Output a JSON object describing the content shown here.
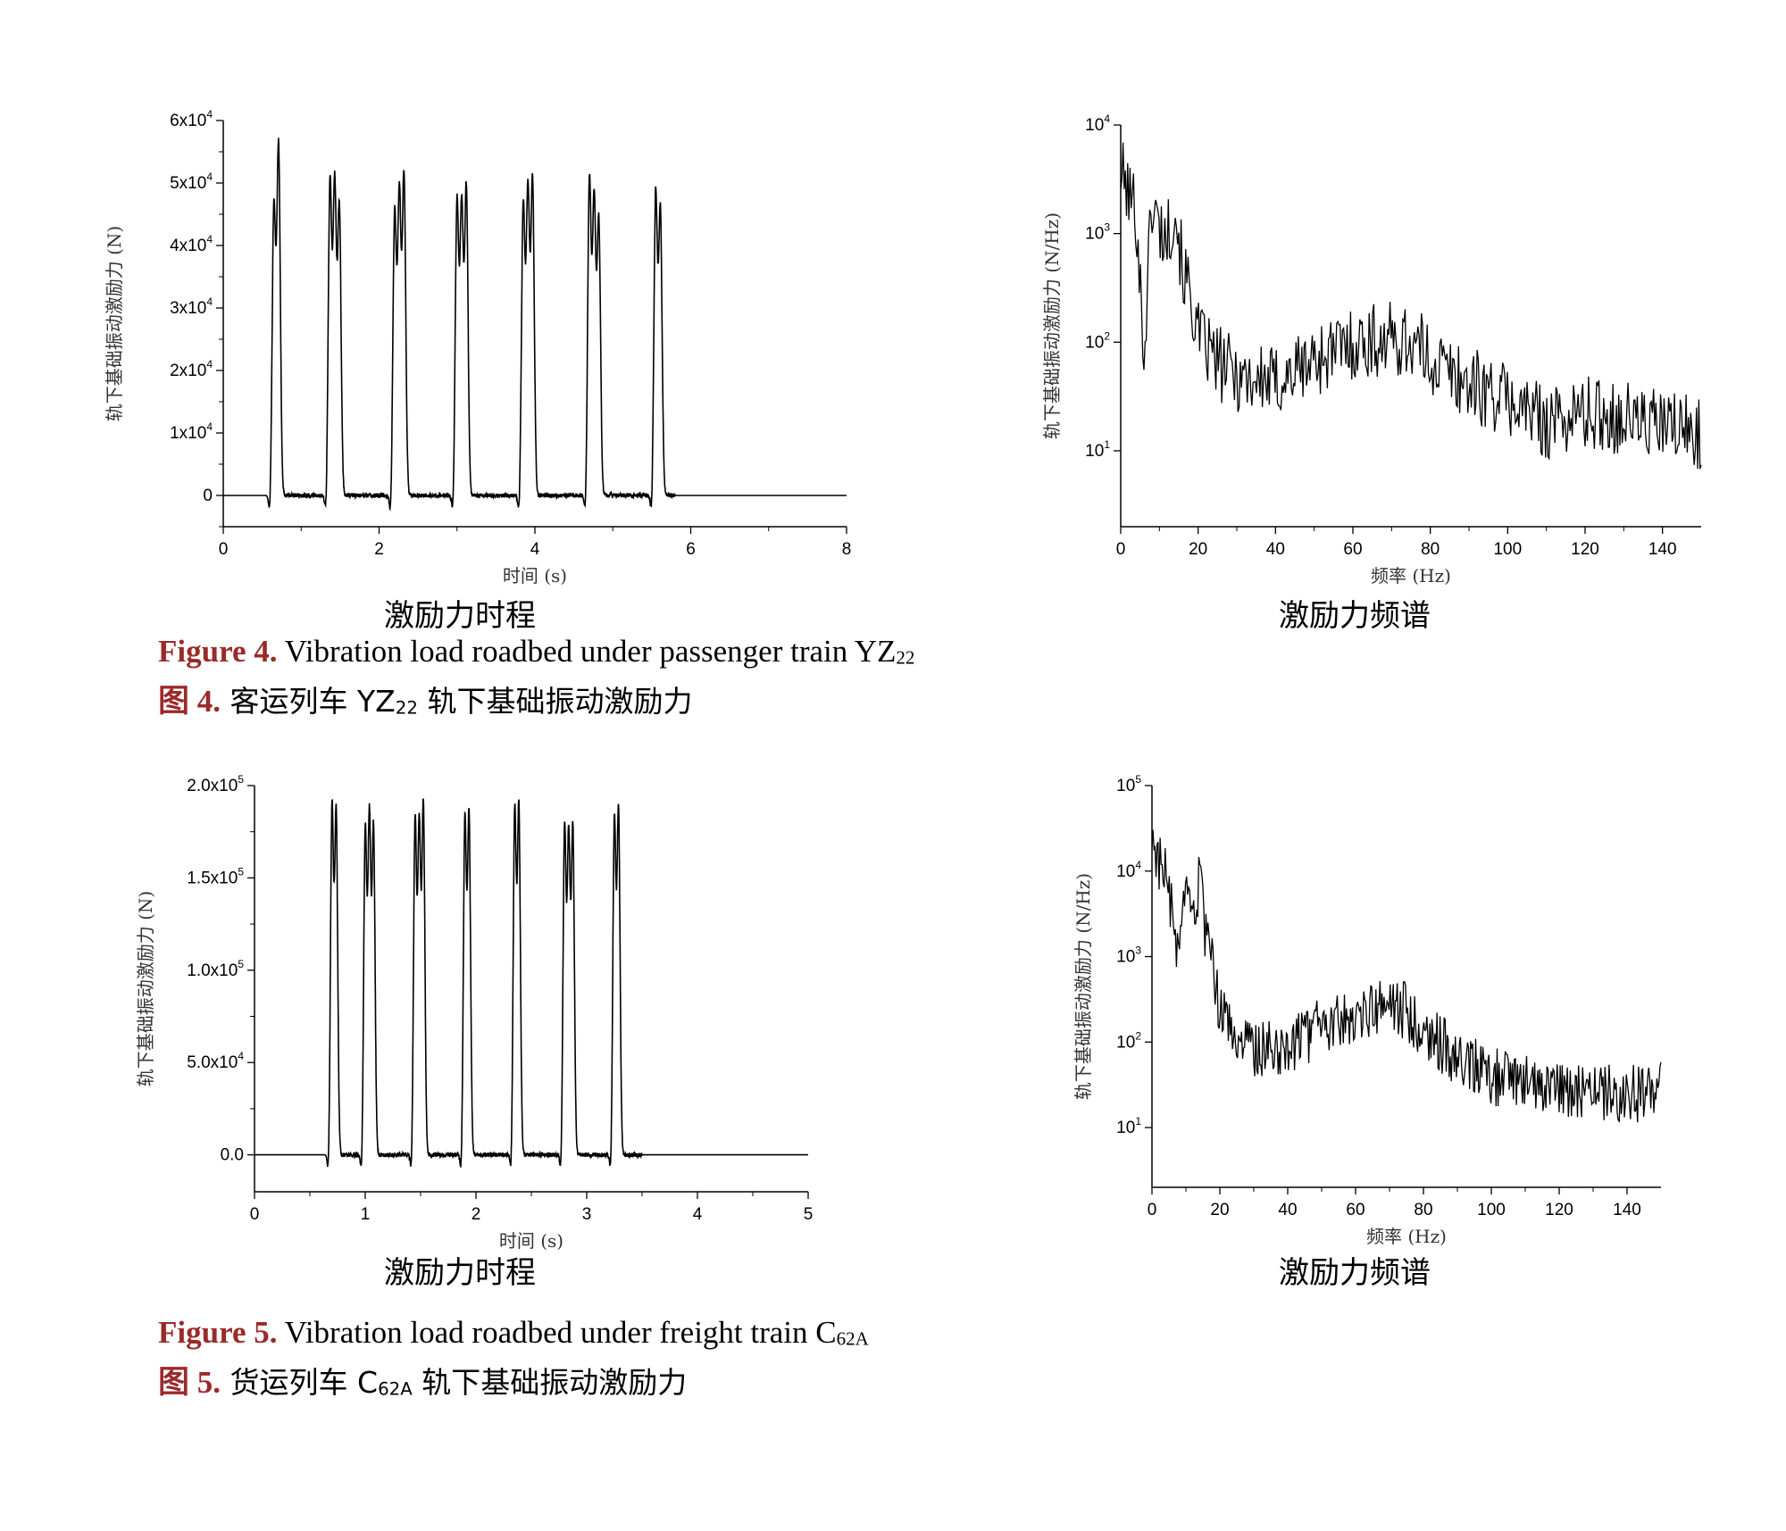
{
  "charts": {
    "c1": {
      "xlabel": "时间 (s)",
      "ylabel": "轨下基础振动激励力 (N)",
      "xticks": [
        "0",
        "2",
        "4",
        "6",
        "8"
      ],
      "yticks": [
        {
          "base": "0",
          "exp": ""
        },
        {
          "base": "1x10",
          "exp": "4"
        },
        {
          "base": "2x10",
          "exp": "4"
        },
        {
          "base": "3x10",
          "exp": "4"
        },
        {
          "base": "4x10",
          "exp": "4"
        },
        {
          "base": "5x10",
          "exp": "4"
        },
        {
          "base": "6x10",
          "exp": "4"
        }
      ],
      "title": "激励力时程"
    },
    "c2": {
      "xlabel": "频率 (Hz)",
      "ylabel": "轨下基础振动激励力 (N/Hz)",
      "xticks": [
        "0",
        "20",
        "40",
        "60",
        "80",
        "100",
        "120",
        "140"
      ],
      "yticks": [
        {
          "base": "10",
          "exp": "1"
        },
        {
          "base": "10",
          "exp": "2"
        },
        {
          "base": "10",
          "exp": "3"
        },
        {
          "base": "10",
          "exp": "4"
        }
      ],
      "title": "激励力频谱"
    },
    "c3": {
      "xlabel": "时间 (s)",
      "ylabel": "轨下基础振动激励力 (N)",
      "xticks": [
        "0",
        "1",
        "2",
        "3",
        "4",
        "5"
      ],
      "yticks": [
        {
          "base": "0.0",
          "exp": ""
        },
        {
          "base": "5.0x10",
          "exp": "4"
        },
        {
          "base": "1.0x10",
          "exp": "5"
        },
        {
          "base": "1.5x10",
          "exp": "5"
        },
        {
          "base": "2.0x10",
          "exp": "5"
        }
      ],
      "title": "激励力时程"
    },
    "c4": {
      "xlabel": "频率 (Hz)",
      "ylabel": "轨下基础振动激励力 (N/Hz)",
      "xticks": [
        "0",
        "20",
        "40",
        "60",
        "80",
        "100",
        "120",
        "140"
      ],
      "yticks": [
        {
          "base": "10",
          "exp": "1"
        },
        {
          "base": "10",
          "exp": "2"
        },
        {
          "base": "10",
          "exp": "3"
        },
        {
          "base": "10",
          "exp": "4"
        },
        {
          "base": "10",
          "exp": "5"
        }
      ],
      "title": "激励力频谱"
    }
  },
  "captions": {
    "fig4_en_label": "Figure 4.",
    "fig4_en_text": "Vibration load roadbed under passenger train YZ",
    "fig4_en_sub": "22",
    "fig4_zh_label": "图 4.",
    "fig4_zh_pre": "客运列车 YZ",
    "fig4_zh_sub": "22",
    "fig4_zh_post": "轨下基础振动激励力",
    "fig5_en_label": "Figure 5.",
    "fig5_en_text": "Vibration load roadbed under freight train C",
    "fig5_en_sub": "62A",
    "fig5_zh_label": "图 5.",
    "fig5_zh_pre": "货运列车 C",
    "fig5_zh_sub": "62A",
    "fig5_zh_post": "轨下基础振动激励力"
  },
  "chart_data": [
    {
      "type": "line",
      "xlim": [
        0,
        8
      ],
      "ylim": [
        -5000,
        60000
      ],
      "pulses": {
        "groups_start_s": [
          0.65,
          1.37,
          2.2,
          3.0,
          3.85,
          4.7,
          5.55
        ],
        "peaks_N": [
          [
            46000,
            56000
          ],
          [
            50000,
            49500,
            46000
          ],
          [
            45000,
            48000,
            51000
          ],
          [
            47000,
            46000,
            49000
          ],
          [
            46000,
            48500,
            50000
          ],
          [
            50500,
            47000,
            44000
          ],
          [
            48000,
            45500
          ]
        ]
      },
      "baseline_N": 0,
      "grid": false
    },
    {
      "type": "line",
      "log_y": true,
      "xlim": [
        0,
        150
      ],
      "ylim": [
        2,
        10000
      ],
      "x": [
        0,
        2,
        4,
        6,
        8,
        10,
        12,
        14,
        16,
        18,
        20,
        25,
        30,
        40,
        50,
        60,
        70,
        75,
        80,
        90,
        100,
        110,
        120,
        130,
        140,
        150
      ],
      "values": [
        4000,
        2500,
        1800,
        80,
        2200,
        1200,
        1000,
        2000,
        500,
        300,
        120,
        70,
        55,
        45,
        75,
        105,
        115,
        110,
        75,
        45,
        32,
        20,
        24,
        22,
        18,
        16
      ],
      "grid": false
    },
    {
      "type": "line",
      "xlim": [
        0,
        5
      ],
      "ylim": [
        -20000,
        200000
      ],
      "pulses": {
        "groups_start_s": [
          0.7,
          1.0,
          1.45,
          1.9,
          2.35,
          2.8,
          3.25
        ],
        "peaks_N": [
          [
            187000,
            185000
          ],
          [
            175000,
            181000,
            176000
          ],
          [
            180000,
            176000,
            188000
          ],
          [
            180000,
            183000
          ],
          [
            185000,
            187000
          ],
          [
            176000,
            171000,
            176000
          ],
          [
            180000,
            185000
          ]
        ]
      },
      "baseline_N": 0,
      "grid": false
    },
    {
      "type": "line",
      "log_y": true,
      "xlim": [
        0,
        150
      ],
      "ylim": [
        2,
        100000
      ],
      "x": [
        0,
        2,
        4,
        6,
        8,
        10,
        12,
        14,
        16,
        18,
        20,
        25,
        30,
        40,
        50,
        60,
        70,
        75,
        80,
        90,
        100,
        110,
        120,
        130,
        140,
        150
      ],
      "values": [
        30000,
        15000,
        10000,
        3000,
        1000,
        5000,
        3000,
        8000,
        1500,
        800,
        250,
        120,
        90,
        100,
        160,
        230,
        280,
        250,
        160,
        70,
        42,
        35,
        30,
        28,
        26,
        30
      ],
      "grid": false
    }
  ]
}
